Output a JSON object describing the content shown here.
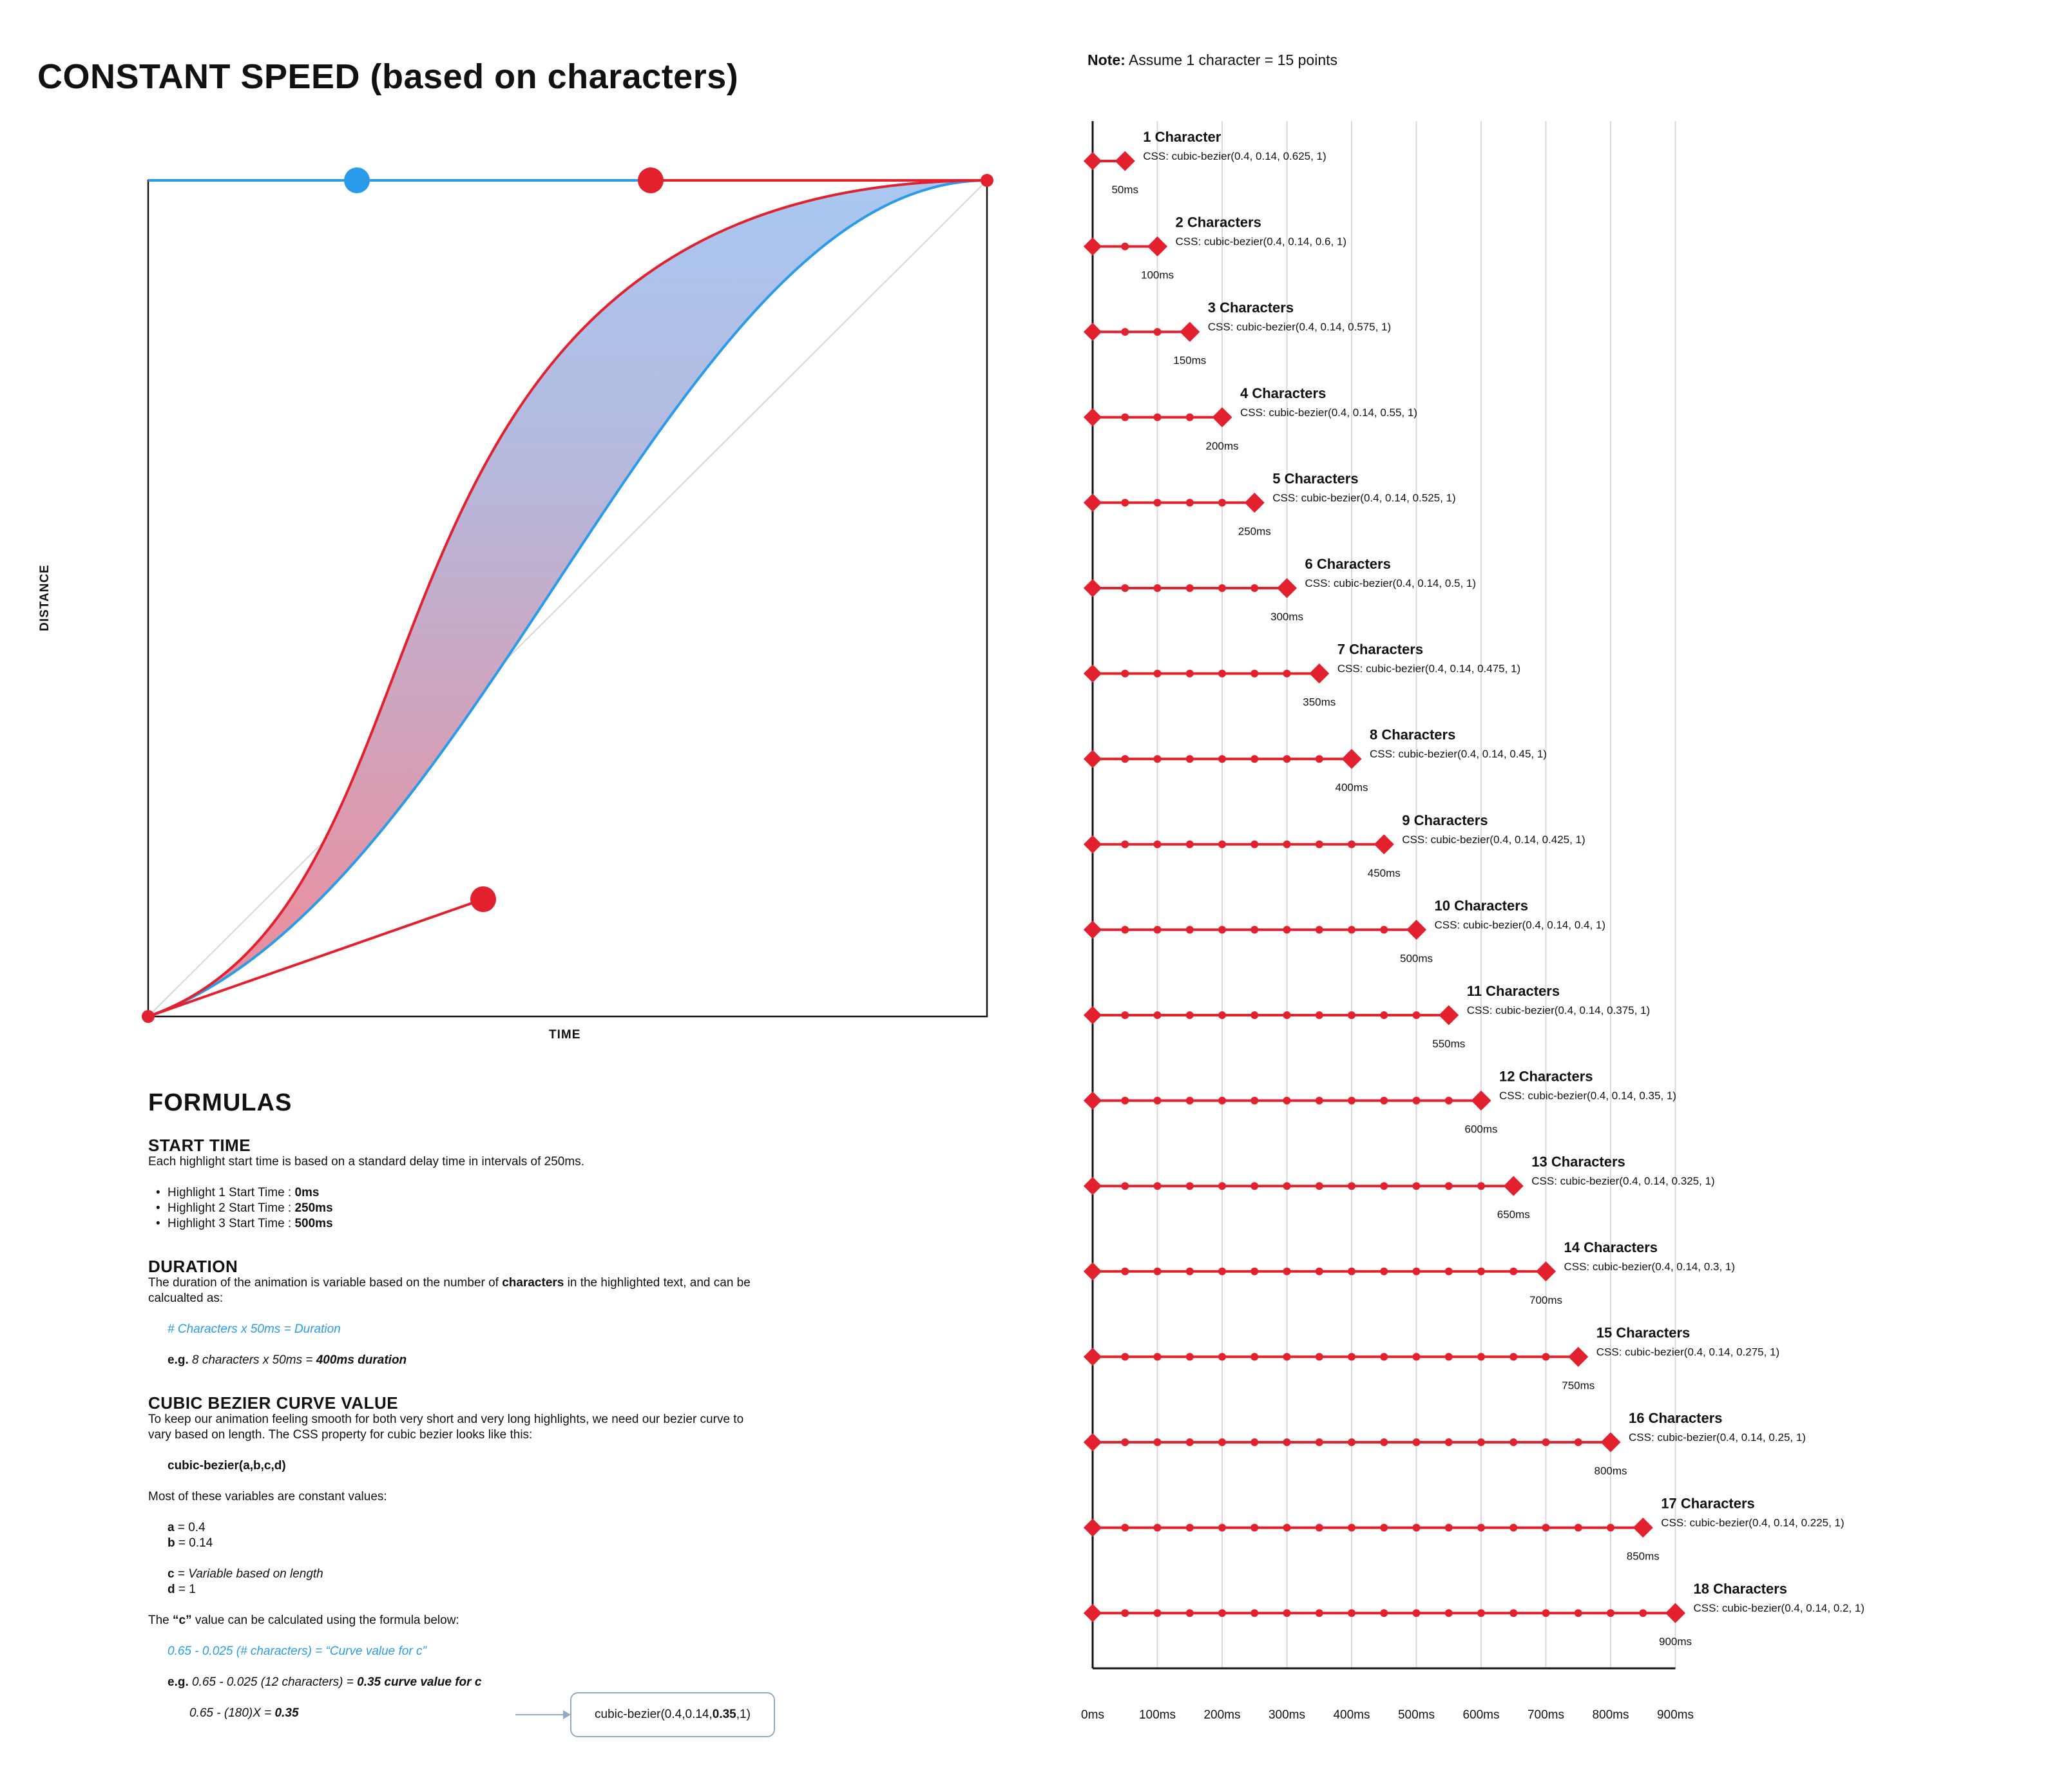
{
  "title": "CONSTANT SPEED (based on characters)",
  "note": {
    "label": "Note:",
    "text": "Assume 1 character = 15 points"
  },
  "curve_chart": {
    "ylabel": "DISTANCE",
    "xlabel": "TIME",
    "blue_curve": "cubic-bezier(0.4, 0.14, 0.625, 1)",
    "red_curve": "cubic-bezier(0.4, 0.14, 0.2, 1)",
    "colors": {
      "blue": "#2a9be8",
      "red": "#e3202e",
      "fill_top": "#a9c8f2",
      "fill_bottom": "#f08a96"
    }
  },
  "timeline": {
    "rows": [
      {
        "label": "1 Character",
        "css": "CSS: cubic-bezier(0.4, 0.14, 0.625, 1)",
        "ms": "50ms"
      },
      {
        "label": "2 Characters",
        "css": "CSS: cubic-bezier(0.4, 0.14, 0.6, 1)",
        "ms": "100ms"
      },
      {
        "label": "3 Characters",
        "css": "CSS: cubic-bezier(0.4, 0.14, 0.575, 1)",
        "ms": "150ms"
      },
      {
        "label": "4 Characters",
        "css": "CSS: cubic-bezier(0.4, 0.14, 0.55, 1)",
        "ms": "200ms"
      },
      {
        "label": "5 Characters",
        "css": "CSS: cubic-bezier(0.4, 0.14, 0.525, 1)",
        "ms": "250ms"
      },
      {
        "label": "6 Characters",
        "css": "CSS: cubic-bezier(0.4, 0.14, 0.5, 1)",
        "ms": "300ms"
      },
      {
        "label": "7 Characters",
        "css": "CSS: cubic-bezier(0.4, 0.14, 0.475, 1)",
        "ms": "350ms"
      },
      {
        "label": "8 Characters",
        "css": "CSS: cubic-bezier(0.4, 0.14, 0.45, 1)",
        "ms": "400ms"
      },
      {
        "label": "9 Characters",
        "css": "CSS: cubic-bezier(0.4, 0.14, 0.425, 1)",
        "ms": "450ms"
      },
      {
        "label": "10 Characters",
        "css": "CSS: cubic-bezier(0.4, 0.14, 0.4, 1)",
        "ms": "500ms"
      },
      {
        "label": "11 Characters",
        "css": "CSS: cubic-bezier(0.4, 0.14, 0.375, 1)",
        "ms": "550ms"
      },
      {
        "label": "12 Characters",
        "css": "CSS: cubic-bezier(0.4, 0.14, 0.35, 1)",
        "ms": "600ms"
      },
      {
        "label": "13 Characters",
        "css": "CSS: cubic-bezier(0.4, 0.14, 0.325, 1)",
        "ms": "650ms"
      },
      {
        "label": "14 Characters",
        "css": "CSS: cubic-bezier(0.4, 0.14, 0.3, 1)",
        "ms": "700ms"
      },
      {
        "label": "15 Characters",
        "css": "CSS: cubic-bezier(0.4, 0.14, 0.275, 1)",
        "ms": "750ms"
      },
      {
        "label": "16 Characters",
        "css": "CSS: cubic-bezier(0.4, 0.14, 0.25, 1)",
        "ms": "800ms"
      },
      {
        "label": "17 Characters",
        "css": "CSS: cubic-bezier(0.4, 0.14, 0.225, 1)",
        "ms": "850ms"
      },
      {
        "label": "18 Characters",
        "css": "CSS: cubic-bezier(0.4, 0.14, 0.2, 1)",
        "ms": "900ms"
      }
    ],
    "axis_ticks": [
      "0ms",
      "100ms",
      "200ms",
      "300ms",
      "400ms",
      "500ms",
      "600ms",
      "700ms",
      "800ms",
      "900ms"
    ],
    "step_ms": 50,
    "max_ms": 900
  },
  "formulas": {
    "heading": "FORMULAS",
    "start_time": {
      "heading": "START TIME",
      "desc": "Each highlight start time is based on a standard delay time in intervals of 250ms.",
      "items": [
        {
          "label": "Highlight 1 Start Time : ",
          "value": "0ms"
        },
        {
          "label": "Highlight 2 Start Time : ",
          "value": "250ms"
        },
        {
          "label": "Highlight 3 Start Time : ",
          "value": "500ms"
        }
      ]
    },
    "duration": {
      "heading": "DURATION",
      "desc_a": "The duration of the animation is variable based on the number of ",
      "desc_b": "characters",
      "desc_c": " in the highlighted text, and can be calcualted as:",
      "formula": "# Characters x 50ms = Duration",
      "example_label": "e.g.",
      "example_a": " 8 characters x 50ms = ",
      "example_b": "400ms duration"
    },
    "bezier": {
      "heading": "CUBIC BEZIER CURVE VALUE",
      "desc": "To keep our animation feeling smooth for both very short and very long highlights, we need our bezier curve to vary based on length. The CSS property for cubic bezier looks like this:",
      "code": "cubic-bezier(a,b,c,d)",
      "constants_intro": "Most of these variables are constant values:",
      "a_key": "a",
      "a_val": " = 0.4",
      "b_key": "b",
      "b_val": " = 0.14",
      "c_key": "c",
      "c_eq": " = ",
      "c_val": "Variable based on length",
      "d_key": "d",
      "d_val": " = 1",
      "c_calc_a": "The ",
      "c_calc_b": "“c”",
      "c_calc_c": " value can be calculated using the formula below:",
      "c_formula": "0.65 - 0.025 (# characters) = “Curve value for c”",
      "example_label": "e.g.",
      "example_a": " 0.65 - 0.025 (12 characters) = ",
      "example_b": "0.35 curve value for c",
      "box_a": "cubic-bezier(0.4,0.14,",
      "box_b": "0.35",
      "box_c": ",1)",
      "inverse_a": "0.65 - (180)X = ",
      "inverse_b": "0.35"
    }
  }
}
